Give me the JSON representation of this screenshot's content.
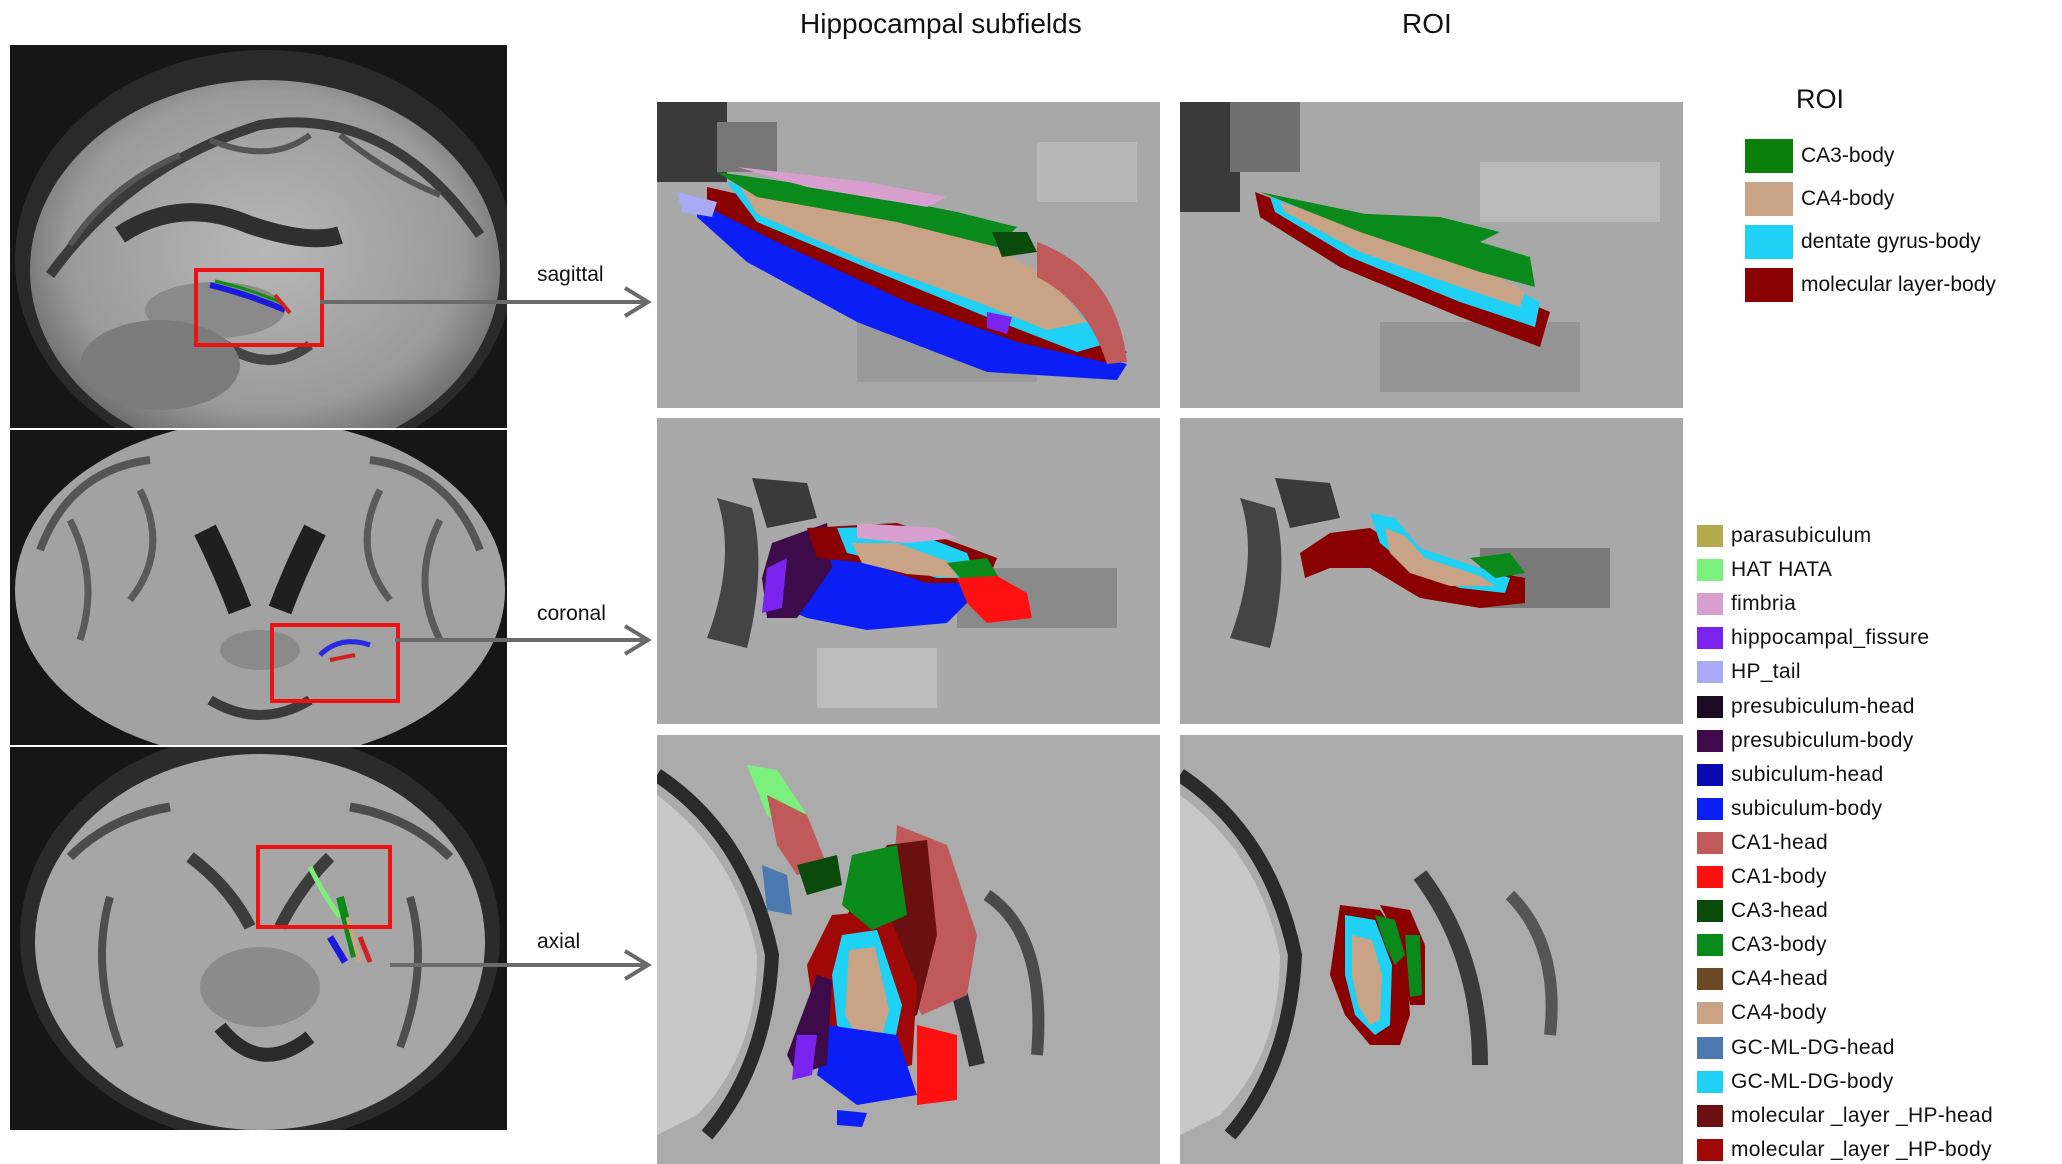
{
  "titles": {
    "subfields": "Hippocampal subfields",
    "roi": "ROI"
  },
  "views": [
    {
      "label": "sagittal"
    },
    {
      "label": "coronal"
    },
    {
      "label": "axial"
    }
  ],
  "roi_legend": {
    "title": "ROI",
    "items": [
      {
        "label": "CA3-body",
        "color": "#0a7f0a"
      },
      {
        "label": "CA4-body",
        "color": "#c9a385"
      },
      {
        "label": "dentate gyrus-body",
        "color": "#1fd1f5"
      },
      {
        "label": "molecular layer-body",
        "color": "#8b0000"
      }
    ]
  },
  "subfield_legend": {
    "items": [
      {
        "label": "parasubiculum",
        "color": "#b3aa4e"
      },
      {
        "label": "HAT HATA",
        "color": "#7cf07c"
      },
      {
        "label": "fimbria",
        "color": "#d8a0cf"
      },
      {
        "label": "hippocampal_fissure",
        "color": "#7a22ee"
      },
      {
        "label": "HP_tail",
        "color": "#a9a9f5"
      },
      {
        "label": "presubiculum-head",
        "color": "#1c0a22"
      },
      {
        "label": "presubiculum-body",
        "color": "#3d0a4a"
      },
      {
        "label": "subiculum-head",
        "color": "#0a0ab0"
      },
      {
        "label": "subiculum-body",
        "color": "#0a1ef5"
      },
      {
        "label": "CA1-head",
        "color": "#c05a5a"
      },
      {
        "label": "CA1-body",
        "color": "#ff1010"
      },
      {
        "label": "CA3-head",
        "color": "#0a4a0a"
      },
      {
        "label": "CA3-body",
        "color": "#0a8a1a"
      },
      {
        "label": "CA4-head",
        "color": "#6b4a25"
      },
      {
        "label": "CA4-body",
        "color": "#c9a385"
      },
      {
        "label": "GC-ML-DG-head",
        "color": "#4a7ab0"
      },
      {
        "label": "GC-ML-DG-body",
        "color": "#1fd1f5"
      },
      {
        "label": "molecular _layer _HP-head",
        "color": "#6a1010"
      },
      {
        "label": "molecular _layer _HP-body",
        "color": "#a00808"
      }
    ]
  }
}
